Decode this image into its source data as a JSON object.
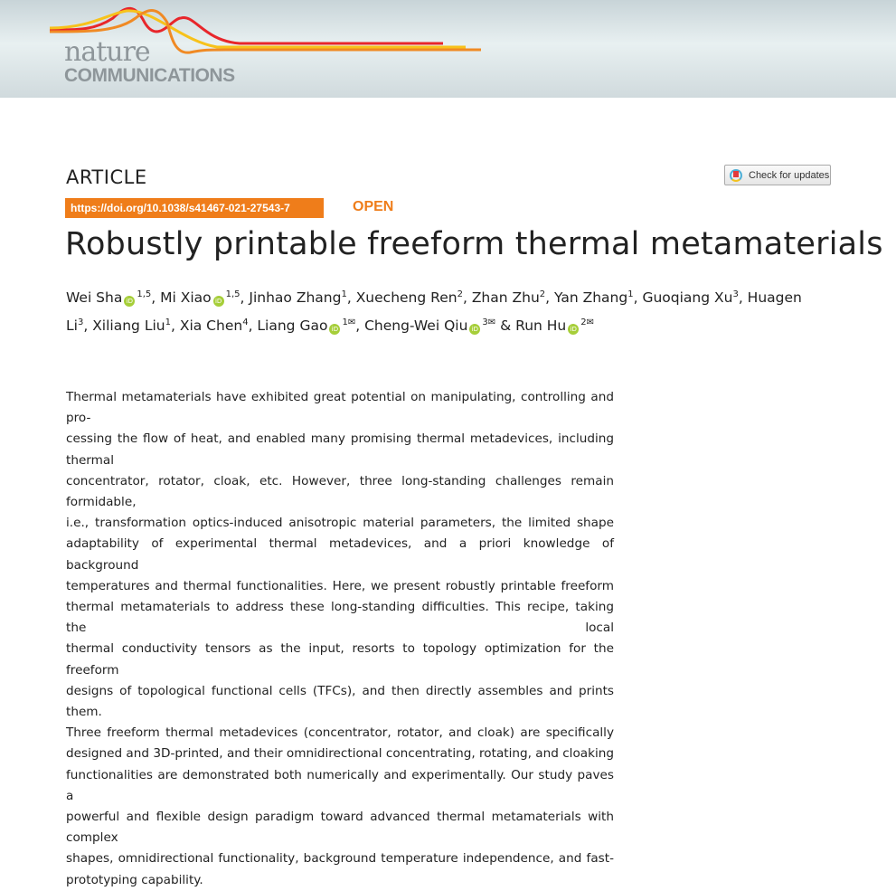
{
  "header": {
    "logo_line1": "nature",
    "logo_line2": "COMMUNICATIONS",
    "brand_colors": [
      "#e8262b",
      "#f7c21b",
      "#f08a24"
    ]
  },
  "article": {
    "type_label": "ARTICLE",
    "check_updates": "Check for updates",
    "doi": "https://doi.org/10.1038/s41467-021-27543-7",
    "open_label": "OPEN",
    "title": "Robustly printable freeform thermal metamaterials",
    "accent": "#ef7d1a"
  },
  "authors": [
    {
      "name": "Wei Sha",
      "orcid": true,
      "sup": "1,5",
      "mail": false,
      "sep": ", "
    },
    {
      "name": "Mi Xiao",
      "orcid": true,
      "sup": "1,5",
      "mail": false,
      "sep": ", "
    },
    {
      "name": "Jinhao Zhang",
      "orcid": false,
      "sup": "1",
      "mail": false,
      "sep": ", "
    },
    {
      "name": "Xuecheng Ren",
      "orcid": false,
      "sup": "2",
      "mail": false,
      "sep": ", "
    },
    {
      "name": "Zhan Zhu",
      "orcid": false,
      "sup": "2",
      "mail": false,
      "sep": ", "
    },
    {
      "name": "Yan Zhang",
      "orcid": false,
      "sup": "1",
      "mail": false,
      "sep": ", "
    },
    {
      "name": "Guoqiang Xu",
      "orcid": false,
      "sup": "3",
      "mail": false,
      "sep": ", "
    },
    {
      "name": "Huagen Li",
      "orcid": false,
      "sup": "3",
      "mail": false,
      "sep": ", "
    },
    {
      "name": "Xiliang Liu",
      "orcid": false,
      "sup": "1",
      "mail": false,
      "sep": ", "
    },
    {
      "name": "Xia Chen",
      "orcid": false,
      "sup": "4",
      "mail": false,
      "sep": ", "
    },
    {
      "name": "Liang Gao",
      "orcid": true,
      "sup": "1",
      "mail": true,
      "sep": ", "
    },
    {
      "name": "Cheng-Wei Qiu",
      "orcid": true,
      "sup": "3",
      "mail": true,
      "sep": " & "
    },
    {
      "name": "Run Hu",
      "orcid": true,
      "sup": "2",
      "mail": true,
      "sep": ""
    }
  ],
  "abstract_lines": [
    "Thermal metamaterials have exhibited great potential on manipulating, controlling and pro-",
    "cessing the flow of heat, and enabled many promising thermal metadevices, including thermal",
    "concentrator, rotator, cloak, etc. However, three long-standing challenges remain formidable,",
    "i.e., transformation optics-induced anisotropic material parameters, the limited shape",
    "adaptability of experimental thermal metadevices, and a priori knowledge of background",
    "temperatures and thermal functionalities. Here, we present robustly printable freeform",
    "thermal metamaterials to address these long-standing difficulties. This recipe, taking the local",
    "thermal conductivity tensors as the input, resorts to topology optimization for the freeform",
    "designs of topological functional cells (TFCs), and then directly assembles and prints them.",
    "Three freeform thermal metadevices (concentrator, rotator, and cloak) are specifically",
    "designed and 3D-printed, and their omnidirectional concentrating, rotating, and cloaking",
    "functionalities are demonstrated both numerically and experimentally. Our study paves a",
    "powerful and flexible design paradigm toward advanced thermal metamaterials with complex",
    "shapes, omnidirectional functionality, background temperature independence, and fast-",
    "prototyping capability."
  ]
}
